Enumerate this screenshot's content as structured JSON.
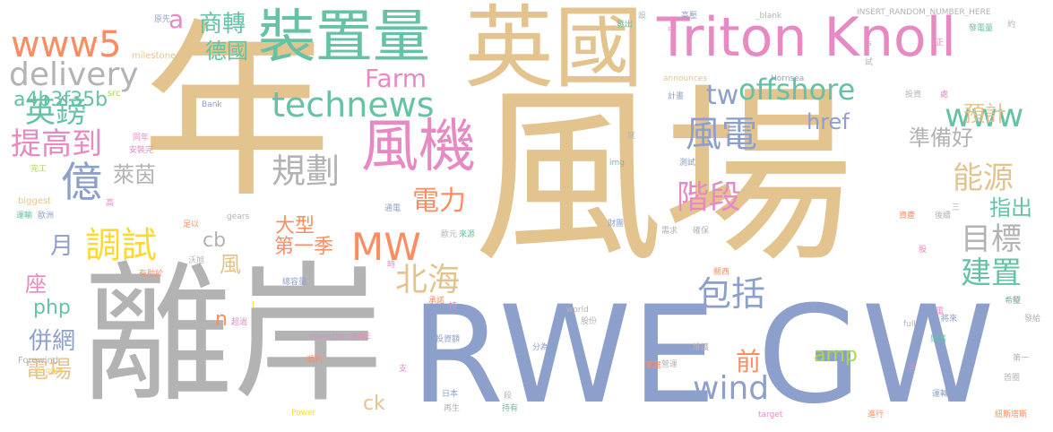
{
  "words": [
    {
      "text": "年",
      "color": "#e3c48f"
    },
    {
      "text": "風場",
      "color": "#e3c48f"
    },
    {
      "text": "離岸",
      "color": "#b3b3b3"
    },
    {
      "text": "RWE",
      "color": "#8da0cb"
    },
    {
      "text": "GW",
      "color": "#8da0cb"
    },
    {
      "text": "英國",
      "color": "#e3c48f"
    },
    {
      "text": "Triton Knoll",
      "color": "#e78ac3"
    },
    {
      "text": "裝置量",
      "color": "#66c2a5"
    },
    {
      "text": "www5",
      "color": "#fc8d62"
    },
    {
      "text": "delivery",
      "color": "#b3b3b3"
    },
    {
      "text": "風機",
      "color": "#e78ac3"
    },
    {
      "text": "億",
      "color": "#8da0cb"
    },
    {
      "text": "technews",
      "color": "#66c2a5"
    },
    {
      "text": "MW",
      "color": "#fc8d62"
    },
    {
      "text": "offshore",
      "color": "#66c2a5"
    },
    {
      "text": "wind",
      "color": "#8da0cb"
    },
    {
      "text": "包括",
      "color": "#8da0cb"
    },
    {
      "text": "北海",
      "color": "#e3c48f"
    },
    {
      "text": "調試",
      "color": "#ffd92f"
    },
    {
      "text": "規劃",
      "color": "#b3b3b3"
    },
    {
      "text": "電力",
      "color": "#fc8d62"
    },
    {
      "text": "階段",
      "color": "#e78ac3"
    },
    {
      "text": "風電",
      "color": "#8da0cb"
    },
    {
      "text": "www",
      "color": "#66c2a5"
    },
    {
      "text": "能源",
      "color": "#e3c48f"
    },
    {
      "text": "目標",
      "color": "#b3b3b3"
    },
    {
      "text": "建置",
      "color": "#66c2a5"
    },
    {
      "text": "英鎊",
      "color": "#66c2a5"
    },
    {
      "text": "提高到",
      "color": "#e78ac3"
    },
    {
      "text": "a4b3f35b",
      "color": "#66c2a5"
    },
    {
      "text": "商轉",
      "color": "#66c2a5"
    },
    {
      "text": "德國",
      "color": "#66c2a5"
    },
    {
      "text": "a",
      "color": "#e78ac3"
    },
    {
      "text": "Farm",
      "color": "#e78ac3"
    },
    {
      "text": "tw",
      "color": "#8da0cb"
    },
    {
      "text": "href",
      "color": "#8da0cb"
    },
    {
      "text": "預計",
      "color": "#e3c48f"
    },
    {
      "text": "準備好",
      "color": "#b3b3b3"
    },
    {
      "text": "指出",
      "color": "#66c2a5"
    },
    {
      "text": "萊茵",
      "color": "#b3b3b3"
    },
    {
      "text": "大型",
      "color": "#fc8d62"
    },
    {
      "text": "第一季",
      "color": "#fc8d62"
    },
    {
      "text": "cb",
      "color": "#b3b3b3"
    },
    {
      "text": "月",
      "color": "#8da0cb"
    },
    {
      "text": "風",
      "color": "#e3c48f"
    },
    {
      "text": "座",
      "color": "#e78ac3"
    },
    {
      "text": "php",
      "color": "#66c2a5"
    },
    {
      "text": "併網",
      "color": "#8da0cb"
    },
    {
      "text": "n",
      "color": "#fc8d62"
    },
    {
      "text": "電場",
      "color": "#e3c48f"
    },
    {
      "text": "ck",
      "color": "#e3c48f"
    },
    {
      "text": "amp",
      "color": "#a6d854"
    },
    {
      "text": "前",
      "color": "#fc8d62"
    },
    {
      "text": "原先",
      "color": "#8da0cb"
    },
    {
      "text": "milestone",
      "color": "#e3c48f"
    },
    {
      "text": "src",
      "color": "#a6d854"
    },
    {
      "text": "Bank",
      "color": "#8da0cb"
    },
    {
      "text": "同年",
      "color": "#e78ac3"
    },
    {
      "text": "安裝完",
      "color": "#e78ac3"
    },
    {
      "text": "完工",
      "color": "#a6d854"
    },
    {
      "text": "biggest",
      "color": "#e3c48f"
    },
    {
      "text": "高",
      "color": "#e78ac3"
    },
    {
      "text": "運輸",
      "color": "#66c2a5"
    },
    {
      "text": "歐洲",
      "color": "#8da0cb"
    },
    {
      "text": "足以",
      "color": "#fc8d62"
    },
    {
      "text": "gears",
      "color": "#b3b3b3"
    },
    {
      "text": "沃旭",
      "color": "#b3b3b3"
    },
    {
      "text": "有助於",
      "color": "#fc8d62"
    },
    {
      "text": "總容量",
      "color": "#8da0cb"
    },
    {
      "text": "超過",
      "color": "#e78ac3"
    },
    {
      "text": "J",
      "color": "#ffd92f"
    },
    {
      "text": "operationsRWE",
      "color": "#e78ac3"
    },
    {
      "text": "Forewind",
      "color": "#b3b3b3"
    },
    {
      "text": "Dogger",
      "color": "#ffd92f"
    },
    {
      "text": "順利",
      "color": "#fc8d62"
    },
    {
      "text": "支",
      "color": "#e78ac3"
    },
    {
      "text": "Power",
      "color": "#ffd92f"
    },
    {
      "text": "日本",
      "color": "#8da0cb"
    },
    {
      "text": "再生",
      "color": "#b3b3b3"
    },
    {
      "text": "持有",
      "color": "#66c2a5"
    },
    {
      "text": "段",
      "color": "#b3b3b3"
    },
    {
      "text": "投資額",
      "color": "#8da0cb"
    },
    {
      "text": "分為",
      "color": "#8da0cb"
    },
    {
      "text": "股份",
      "color": "#b3b3b3"
    },
    {
      "text": "world",
      "color": "#b3b3b3"
    },
    {
      "text": "承諾",
      "color": "#fc8d62"
    },
    {
      "text": "持",
      "color": "#e78ac3"
    },
    {
      "text": "時",
      "color": "#e78ac3"
    },
    {
      "text": "通電",
      "color": "#8da0cb"
    },
    {
      "text": "歐元",
      "color": "#b3b3b3"
    },
    {
      "text": "來源",
      "color": "#66c2a5"
    },
    {
      "text": "財團",
      "color": "#8da0cb"
    },
    {
      "text": "發出",
      "color": "#66c2a5"
    },
    {
      "text": "設",
      "color": "#b3b3b3"
    },
    {
      "text": "中",
      "color": "#e78ac3"
    },
    {
      "text": "_blank",
      "color": "#b3b3b3"
    },
    {
      "text": "INSERT_RANDOM_NUMBER_HERE",
      "color": "#b3b3b3"
    },
    {
      "text": "高壓",
      "color": "#8da0cb"
    },
    {
      "text": "發電量",
      "color": "#66c2a5"
    },
    {
      "text": "約",
      "color": "#b3b3b3"
    },
    {
      "text": "s",
      "color": "#b3b3b3"
    },
    {
      "text": "正",
      "color": "#e78ac3"
    },
    {
      "text": "試",
      "color": "#b3b3b3"
    },
    {
      "text": "announces",
      "color": "#e3c48f"
    },
    {
      "text": "Hornsea",
      "color": "#8da0cb"
    },
    {
      "text": "投資",
      "color": "#b3b3b3"
    },
    {
      "text": "處",
      "color": "#e78ac3"
    },
    {
      "text": "計畫",
      "color": "#8da0cb"
    },
    {
      "text": "img",
      "color": "#66c2a5"
    },
    {
      "text": "測試",
      "color": "#8da0cb"
    },
    {
      "text": "度",
      "color": "#b3b3b3"
    },
    {
      "text": "資產",
      "color": "#fc8d62"
    },
    {
      "text": "後續",
      "color": "#b3b3b3"
    },
    {
      "text": "三",
      "color": "#b3b3b3"
    },
    {
      "text": "需求",
      "color": "#b3b3b3"
    },
    {
      "text": "確保",
      "color": "#b3b3b3"
    },
    {
      "text": "股",
      "color": "#e78ac3"
    },
    {
      "text": "關西",
      "color": "#fc8d62"
    },
    {
      "text": "希望",
      "color": "#66c2a5"
    },
    {
      "text": "歐",
      "color": "#b3b3b3"
    },
    {
      "text": "將來",
      "color": "#8da0cb"
    },
    {
      "text": "電",
      "color": "#e78ac3"
    },
    {
      "text": "發給",
      "color": "#b3b3b3"
    },
    {
      "text": "full",
      "color": "#b3b3b3"
    },
    {
      "text": "聚落",
      "color": "#66c2a5"
    },
    {
      "text": "維護",
      "color": "#b3b3b3"
    },
    {
      "text": "營運",
      "color": "#b3b3b3"
    },
    {
      "text": "家庭",
      "color": "#fc8d62"
    },
    {
      "text": "第一",
      "color": "#b3b3b3"
    },
    {
      "text": "首圈",
      "color": "#b3b3b3"
    },
    {
      "text": "戶",
      "color": "#e78ac3"
    },
    {
      "text": "運轉",
      "color": "#8da0cb"
    },
    {
      "text": "target",
      "color": "#e78ac3"
    },
    {
      "text": "進行",
      "color": "#fc8d62"
    },
    {
      "text": "紐斯塔斯",
      "color": "#fc8d62"
    }
  ]
}
